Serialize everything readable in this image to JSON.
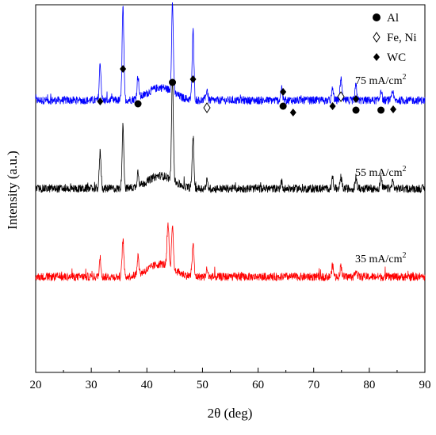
{
  "chart_data": {
    "type": "line",
    "title": "",
    "xlabel": "2θ (deg)",
    "ylabel": "Intensity (a.u.)",
    "xlim": [
      20,
      90
    ],
    "xticks": [
      20,
      30,
      40,
      50,
      60,
      70,
      80,
      90
    ],
    "yticks_shown": false,
    "grid": false,
    "legend": {
      "placement": "top-right",
      "entries": [
        {
          "symbol": "filled-circle",
          "label": "Al"
        },
        {
          "symbol": "open-diamond",
          "label": "Fe, Ni"
        },
        {
          "symbol": "filled-diamond",
          "label": "WC"
        }
      ]
    },
    "series": [
      {
        "name": "75 mA/cm²",
        "label_main": "75 mA/cm",
        "label_sup": "2",
        "color": "#0000ff",
        "baseline": 0.74,
        "peaks": [
          [
            31.6,
            0.1
          ],
          [
            35.7,
            0.25
          ],
          [
            38.4,
            0.06
          ],
          [
            44.6,
            0.24
          ],
          [
            48.3,
            0.19
          ],
          [
            50.8,
            0.03
          ],
          [
            64.2,
            0.03
          ],
          [
            73.4,
            0.03
          ],
          [
            74.9,
            0.06
          ],
          [
            77.6,
            0.04
          ],
          [
            82.1,
            0.03
          ],
          [
            84.2,
            0.02
          ]
        ]
      },
      {
        "name": "55 mA/cm²",
        "label_main": "55 mA/cm",
        "label_sup": "2",
        "color": "#000000",
        "baseline": 0.5,
        "peaks": [
          [
            31.6,
            0.1
          ],
          [
            35.7,
            0.17
          ],
          [
            38.4,
            0.04
          ],
          [
            44.6,
            0.28
          ],
          [
            48.3,
            0.14
          ],
          [
            50.8,
            0.02
          ],
          [
            64.2,
            0.02
          ],
          [
            73.4,
            0.03
          ],
          [
            74.9,
            0.03
          ],
          [
            77.6,
            0.03
          ],
          [
            82.1,
            0.03
          ],
          [
            84.2,
            0.02
          ]
        ]
      },
      {
        "name": "35 mA/cm²",
        "label_main": "35 mA/cm",
        "label_sup": "2",
        "color": "#ff0000",
        "baseline": 0.26,
        "peaks": [
          [
            31.6,
            0.05
          ],
          [
            35.7,
            0.1
          ],
          [
            38.4,
            0.05
          ],
          [
            43.8,
            0.12
          ],
          [
            44.6,
            0.12
          ],
          [
            48.3,
            0.09
          ],
          [
            50.8,
            0.02
          ],
          [
            73.4,
            0.03
          ],
          [
            74.9,
            0.03
          ],
          [
            77.6,
            0.02
          ]
        ]
      }
    ],
    "markers": [
      {
        "type": "WC",
        "x": 31.6
      },
      {
        "type": "WC",
        "x": 35.7
      },
      {
        "type": "Al",
        "x": 38.4
      },
      {
        "type": "Al",
        "x": 44.6
      },
      {
        "type": "WC",
        "x": 48.3
      },
      {
        "type": "FeNi",
        "x": 50.8
      },
      {
        "type": "WC",
        "x": 64.5
      },
      {
        "type": "Al",
        "x": 64.5
      },
      {
        "type": "WC",
        "x": 66.3
      },
      {
        "type": "WC",
        "x": 73.4
      },
      {
        "type": "FeNi",
        "x": 74.9
      },
      {
        "type": "WC",
        "x": 77.6
      },
      {
        "type": "Al",
        "x": 77.6
      },
      {
        "type": "Al",
        "x": 82.1
      },
      {
        "type": "WC",
        "x": 84.3
      }
    ]
  }
}
